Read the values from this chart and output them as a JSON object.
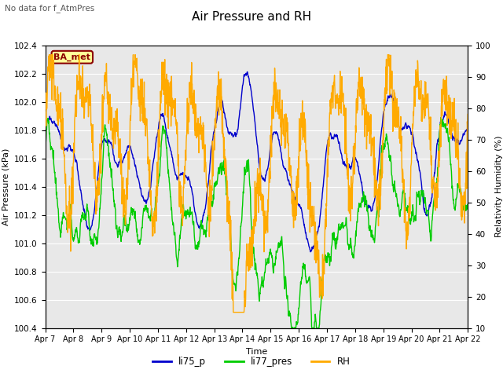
{
  "title": "Air Pressure and RH",
  "subtitle": "No data for f_AtmPres",
  "box_label": "BA_met",
  "xlabel": "Time",
  "ylabel_left": "Air Pressure (kPa)",
  "ylabel_right": "Relativity Humidity (%)",
  "ylim_left": [
    100.4,
    102.4
  ],
  "ylim_right": [
    10,
    100
  ],
  "xtick_labels": [
    "Apr 7",
    "Apr 8",
    "Apr 9",
    "Apr 10",
    "Apr 11",
    "Apr 12",
    "Apr 13",
    "Apr 14",
    "Apr 15",
    "Apr 16",
    "Apr 17",
    "Apr 18",
    "Apr 19",
    "Apr 20",
    "Apr 21",
    "Apr 22"
  ],
  "color_li75": "#0000cc",
  "color_li77": "#00cc00",
  "color_rh": "#ffaa00",
  "bg_color": "#e8e8e8",
  "fig_bg": "#ffffff",
  "legend_items": [
    "li75_p",
    "li77_pres",
    "RH"
  ],
  "n_points": 1500,
  "seed": 7
}
